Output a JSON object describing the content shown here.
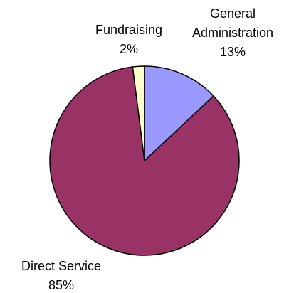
{
  "chart_data": {
    "type": "pie",
    "title": "",
    "slices": [
      {
        "category": "General Administration",
        "label_lines": [
          "General",
          "Administration"
        ],
        "percent_label": "13%",
        "value": 13,
        "color": "#9999ff"
      },
      {
        "category": "Direct Service",
        "label_lines": [
          "Direct Service"
        ],
        "percent_label": "85%",
        "value": 85,
        "color": "#993366"
      },
      {
        "category": "Fundraising",
        "label_lines": [
          "Fundraising"
        ],
        "percent_label": "2%",
        "value": 2,
        "color": "#ffffcc"
      }
    ],
    "legend": "none",
    "outline_color": "#000000"
  }
}
